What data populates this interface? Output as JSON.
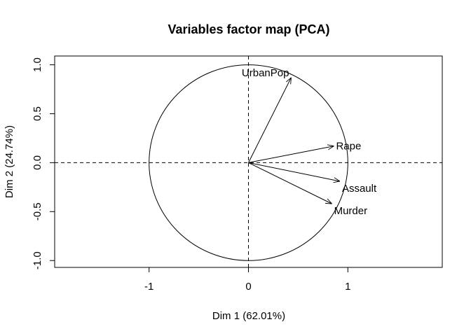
{
  "chart_data": {
    "type": "scatter",
    "title": "Variables factor map (PCA)",
    "xlabel": "Dim 1 (62.01%)",
    "ylabel": "Dim 2 (24.74%)",
    "xlim": [
      -1.95,
      1.95
    ],
    "ylim": [
      -1.07,
      1.09
    ],
    "x_ticks": [
      {
        "value": -1,
        "label": "-1"
      },
      {
        "value": 0,
        "label": "0"
      },
      {
        "value": 1,
        "label": "1"
      }
    ],
    "y_ticks": [
      {
        "value": -1.0,
        "label": "-1.0"
      },
      {
        "value": -0.5,
        "label": "-0.5"
      },
      {
        "value": 0.0,
        "label": "0.0"
      },
      {
        "value": 0.5,
        "label": "0.5"
      },
      {
        "value": 1.0,
        "label": "1.0"
      }
    ],
    "unit_circle": true,
    "reference_lines": [
      "x=0",
      "y=0"
    ],
    "grid": false,
    "legend": "none",
    "variables": [
      {
        "name": "UrbanPop",
        "x": 0.43,
        "y": 0.87,
        "label_anchor": "left"
      },
      {
        "name": "Rape",
        "x": 0.86,
        "y": 0.17,
        "label_anchor": "right"
      },
      {
        "name": "Assault",
        "x": 0.92,
        "y": -0.19,
        "label_anchor": "below-right"
      },
      {
        "name": "Murder",
        "x": 0.84,
        "y": -0.42,
        "label_anchor": "below-right"
      }
    ],
    "colors": {
      "line": "#000000",
      "background": "#ffffff"
    }
  }
}
